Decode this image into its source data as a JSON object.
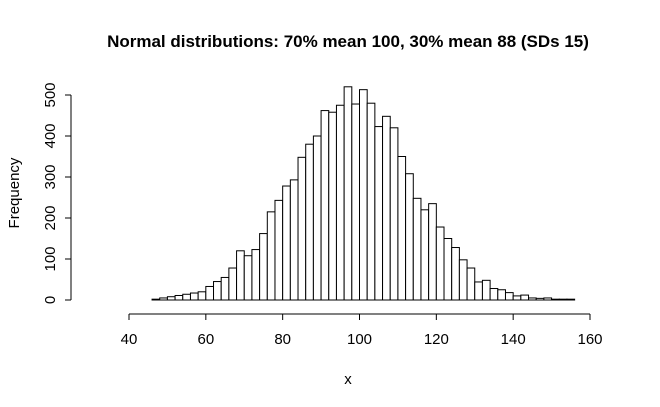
{
  "chart_data": {
    "type": "bar",
    "title": "Normal distributions: 70% mean 100, 30% mean 88 (SDs 15)",
    "xlabel": "x",
    "ylabel": "Frequency",
    "xlim": [
      30,
      160
    ],
    "ylim": [
      0,
      520
    ],
    "xticks": [
      40,
      60,
      80,
      100,
      120,
      140,
      160
    ],
    "yticks": [
      0,
      100,
      200,
      300,
      400,
      500
    ],
    "bin_width": 2,
    "bin_start": 32,
    "values": [
      0,
      0,
      0,
      0,
      0,
      0,
      0,
      2,
      5,
      8,
      11,
      14,
      17,
      20,
      33,
      45,
      55,
      78,
      120,
      108,
      123,
      162,
      215,
      243,
      278,
      293,
      348,
      380,
      400,
      462,
      458,
      475,
      520,
      478,
      513,
      480,
      423,
      448,
      420,
      350,
      308,
      248,
      220,
      235,
      178,
      150,
      128,
      98,
      78,
      44,
      48,
      28,
      25,
      18,
      10,
      12,
      5,
      4,
      5,
      2,
      2,
      2,
      0
    ]
  }
}
